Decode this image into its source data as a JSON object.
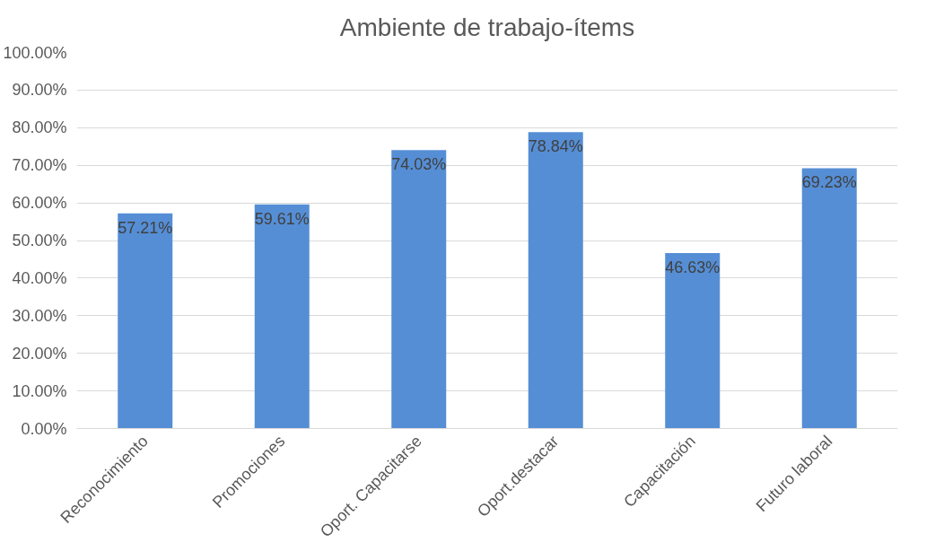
{
  "chart_data": {
    "type": "bar",
    "title": "Ambiente de trabajo-ítems",
    "categories": [
      "Reconocimiento",
      "Promociones",
      "Oport. Capacitarse",
      "Oport.destacar",
      "Capacitación",
      "Futuro laboral"
    ],
    "values": [
      57.21,
      59.61,
      74.03,
      78.84,
      46.63,
      69.23
    ],
    "value_labels": [
      "57.21%",
      "59.61%",
      "74.03%",
      "78.84%",
      "46.63%",
      "69.23%"
    ],
    "color": "#558ed5",
    "ylim": [
      0,
      100
    ],
    "yticks": [
      {
        "value": 0,
        "label": "0.00%"
      },
      {
        "value": 10,
        "label": "10.00%"
      },
      {
        "value": 20,
        "label": "20.00%"
      },
      {
        "value": 30,
        "label": "30.00%"
      },
      {
        "value": 40,
        "label": "40.00%"
      },
      {
        "value": 50,
        "label": "50.00%"
      },
      {
        "value": 60,
        "label": "60.00%"
      },
      {
        "value": 70,
        "label": "70.00%"
      },
      {
        "value": 80,
        "label": "80.00%"
      },
      {
        "value": 90,
        "label": "90.00%"
      },
      {
        "value": 100,
        "label": "100.00%"
      }
    ],
    "grid": "y"
  }
}
